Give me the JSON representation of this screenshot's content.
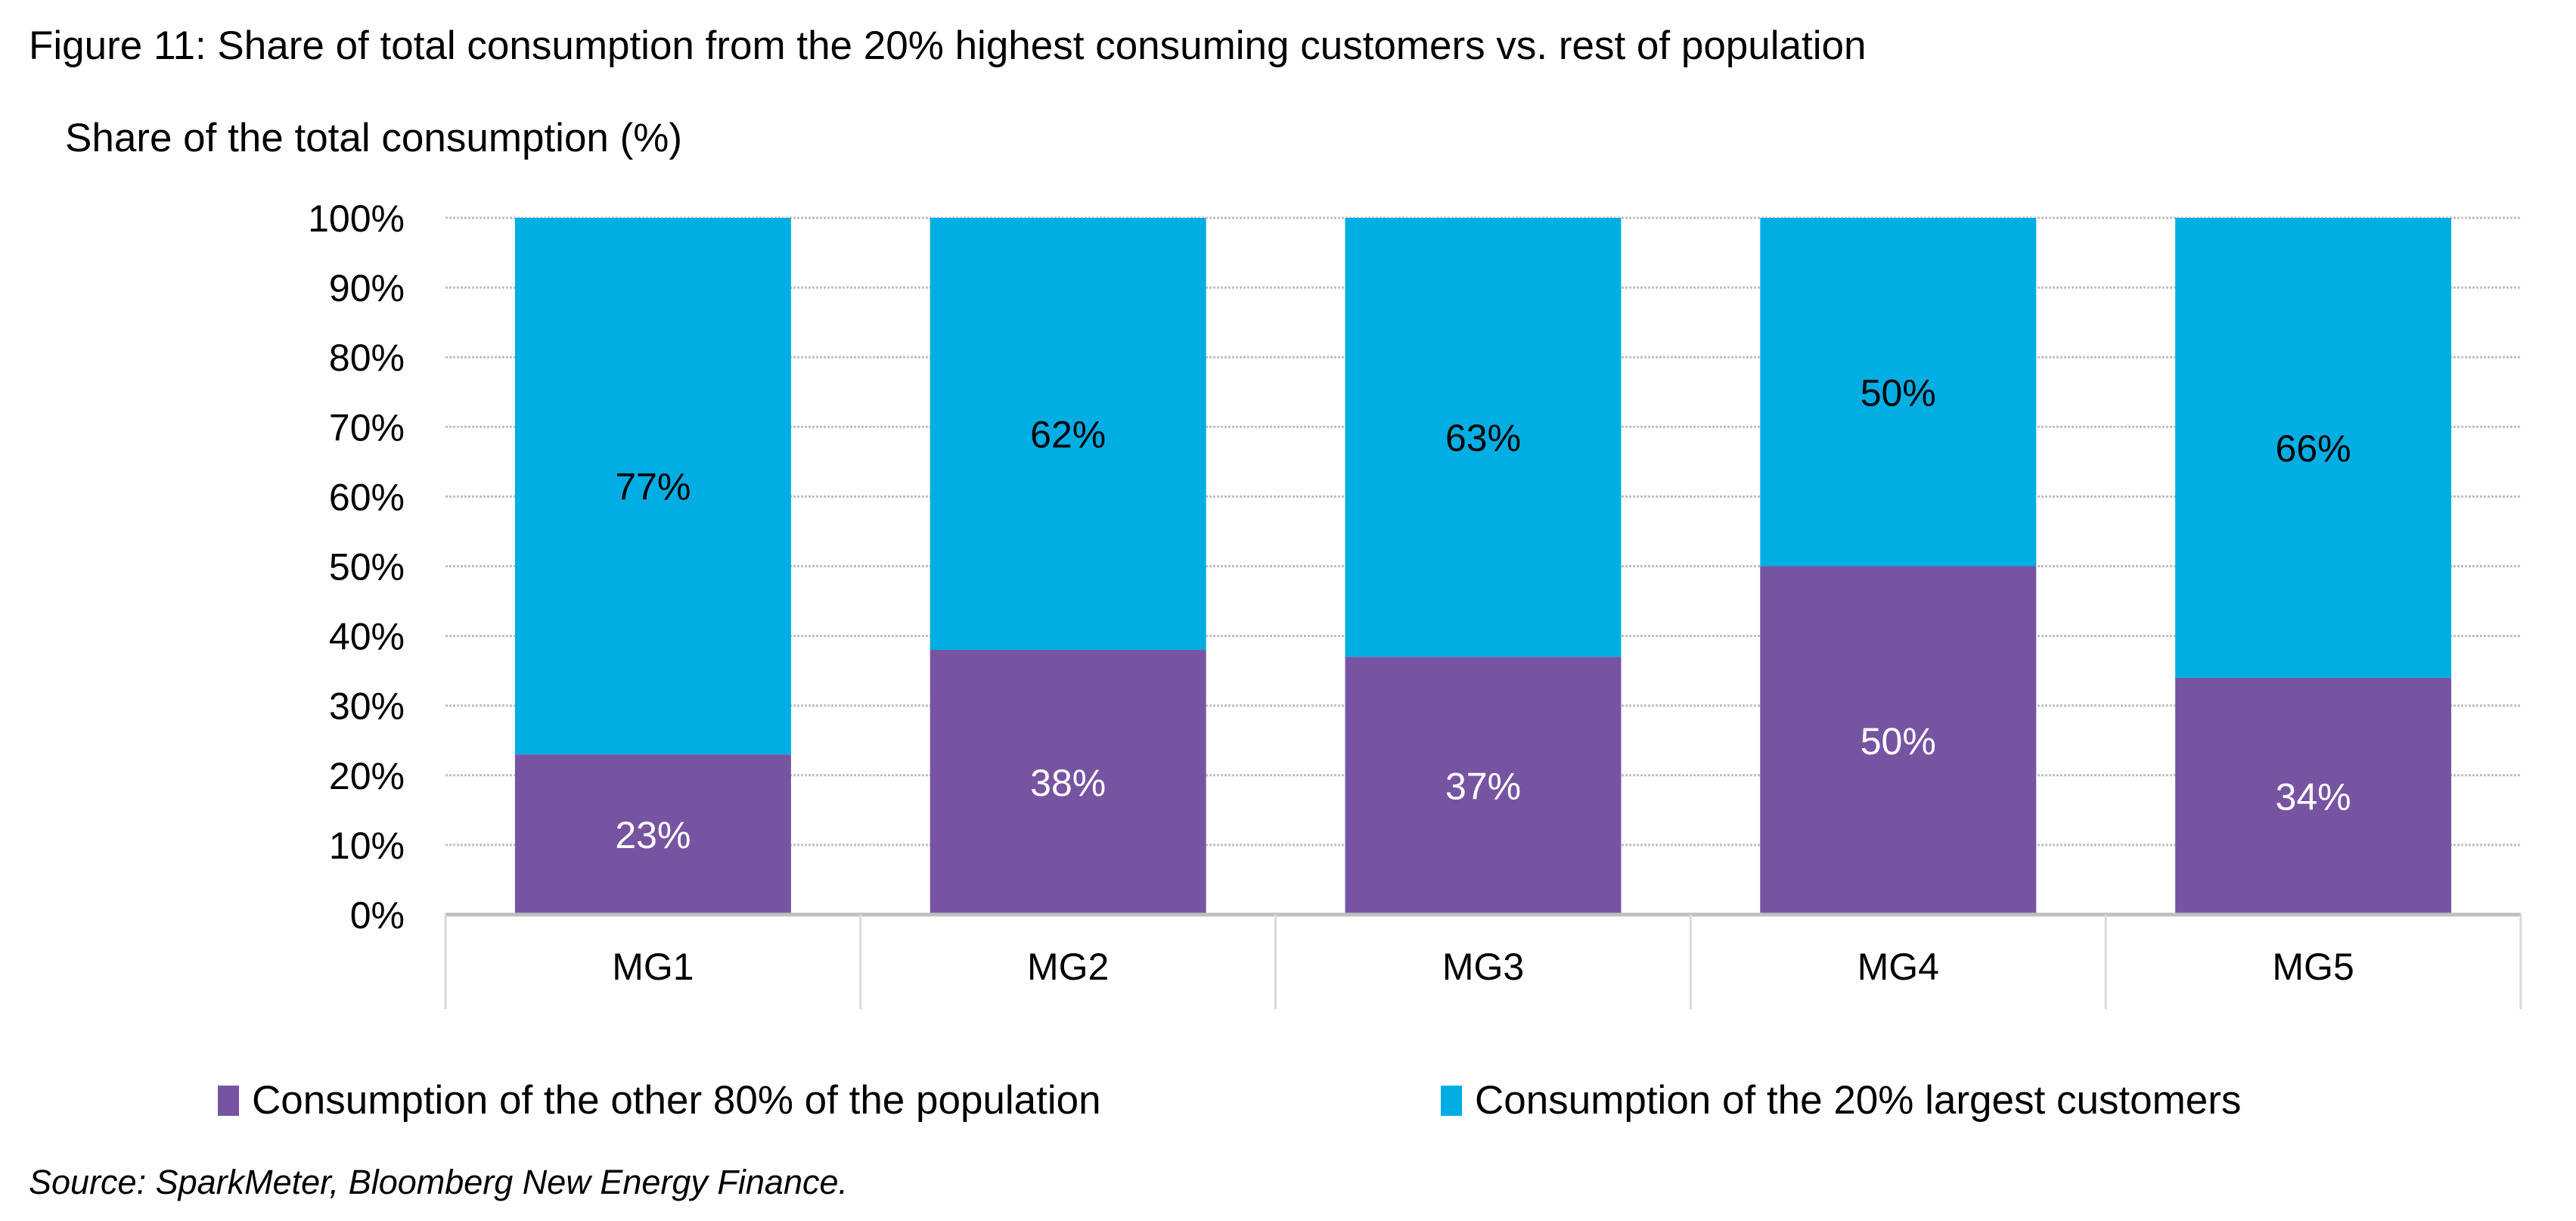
{
  "chart_data": {
    "type": "bar",
    "stacked": true,
    "title": "Figure 11: Share of total consumption from the 20% highest consuming customers vs. rest of population",
    "ylabel": "Share of the total consumption (%)",
    "xlabel": "",
    "categories": [
      "MG1",
      "MG2",
      "MG3",
      "MG4",
      "MG5"
    ],
    "series": [
      {
        "name": "Consumption of the other 80% of the population",
        "color": "#7754A2",
        "values": [
          23,
          38,
          37,
          50,
          34
        ],
        "labels": [
          "23%",
          "38%",
          "37%",
          "50%",
          "34%"
        ]
      },
      {
        "name": "Consumption of the 20% largest customers",
        "color": "#00AEE4",
        "values": [
          77,
          62,
          63,
          50,
          66
        ],
        "labels": [
          "77%",
          "62%",
          "63%",
          "50%",
          "66%"
        ]
      }
    ],
    "ylim": [
      0,
      100
    ],
    "yticks": [
      "0%",
      "10%",
      "20%",
      "30%",
      "40%",
      "50%",
      "60%",
      "70%",
      "80%",
      "90%",
      "100%"
    ],
    "grid": true,
    "legend_position": "bottom",
    "source": "Source: SparkMeter, Bloomberg New Energy Finance."
  }
}
